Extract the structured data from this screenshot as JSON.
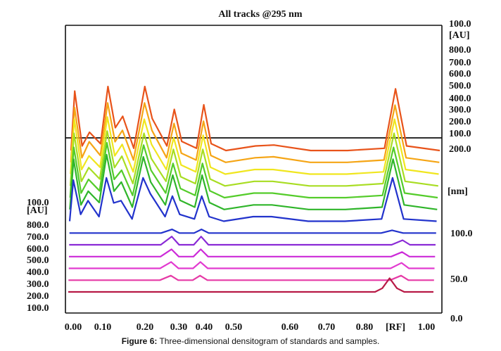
{
  "chart_data": {
    "type": "line",
    "title": "All tracks @295 nm",
    "caption_bold": "Figure 6:",
    "caption_rest": " Three-dimensional densitogram of standards and samples.",
    "xlabel": "[RF]",
    "x_ticks": [
      "0.00",
      "0.10",
      "0.20",
      "0.30",
      "0.40",
      "0.50",
      "0.60",
      "0.70",
      "0.80",
      "1.00"
    ],
    "left_au_ticks": [
      "100.0",
      "800.0",
      "700.0",
      "600.0",
      "500.0",
      "400.0",
      "300.0",
      "200.0",
      "100.0"
    ],
    "left_au_unit": "[AU]",
    "right_au_ticks": [
      "100.0",
      "800.0",
      "700.0",
      "600.0",
      "500.0",
      "400.0",
      "300.0",
      "200.0",
      "100.0"
    ],
    "right_au_unit": "[AU]",
    "right_nm_top": "200.0",
    "right_nm_unit": "[nm]",
    "right_nm_ticks": [
      "100.0",
      "50.0",
      "0.0"
    ],
    "series": [
      {
        "color": "#e8531a",
        "values": [
          [
            0.0,
            0
          ],
          [
            0.01,
            130
          ],
          [
            0.03,
            10
          ],
          [
            0.05,
            40
          ],
          [
            0.08,
            15
          ],
          [
            0.1,
            140
          ],
          [
            0.12,
            50
          ],
          [
            0.14,
            75
          ],
          [
            0.17,
            5
          ],
          [
            0.2,
            140
          ],
          [
            0.22,
            70
          ],
          [
            0.26,
            10
          ],
          [
            0.28,
            90
          ],
          [
            0.3,
            20
          ],
          [
            0.34,
            5
          ],
          [
            0.36,
            100
          ],
          [
            0.38,
            15
          ],
          [
            0.42,
            0
          ],
          [
            0.5,
            10
          ],
          [
            0.55,
            12
          ],
          [
            0.65,
            0
          ],
          [
            0.75,
            0
          ],
          [
            0.85,
            5
          ],
          [
            0.88,
            135
          ],
          [
            0.91,
            10
          ],
          [
            1.0,
            0
          ]
        ]
      },
      {
        "color": "#f5a515",
        "values": [
          [
            0.0,
            0
          ],
          [
            0.01,
            120
          ],
          [
            0.03,
            10
          ],
          [
            0.05,
            45
          ],
          [
            0.08,
            15
          ],
          [
            0.1,
            130
          ],
          [
            0.12,
            45
          ],
          [
            0.14,
            70
          ],
          [
            0.17,
            5
          ],
          [
            0.2,
            130
          ],
          [
            0.22,
            70
          ],
          [
            0.26,
            10
          ],
          [
            0.28,
            85
          ],
          [
            0.3,
            20
          ],
          [
            0.34,
            5
          ],
          [
            0.36,
            90
          ],
          [
            0.38,
            15
          ],
          [
            0.42,
            0
          ],
          [
            0.5,
            10
          ],
          [
            0.55,
            12
          ],
          [
            0.65,
            0
          ],
          [
            0.75,
            0
          ],
          [
            0.85,
            5
          ],
          [
            0.88,
            125
          ],
          [
            0.91,
            10
          ],
          [
            1.0,
            0
          ]
        ]
      },
      {
        "color": "#f0e61e",
        "values": [
          [
            0.0,
            0
          ],
          [
            0.01,
            120
          ],
          [
            0.03,
            10
          ],
          [
            0.05,
            40
          ],
          [
            0.08,
            15
          ],
          [
            0.1,
            125
          ],
          [
            0.12,
            40
          ],
          [
            0.14,
            65
          ],
          [
            0.17,
            5
          ],
          [
            0.2,
            120
          ],
          [
            0.22,
            65
          ],
          [
            0.26,
            10
          ],
          [
            0.28,
            80
          ],
          [
            0.3,
            20
          ],
          [
            0.34,
            5
          ],
          [
            0.36,
            85
          ],
          [
            0.38,
            15
          ],
          [
            0.42,
            0
          ],
          [
            0.5,
            10
          ],
          [
            0.55,
            10
          ],
          [
            0.65,
            0
          ],
          [
            0.75,
            0
          ],
          [
            0.85,
            5
          ],
          [
            0.88,
            120
          ],
          [
            0.91,
            10
          ],
          [
            1.0,
            0
          ]
        ]
      },
      {
        "color": "#a8dd22",
        "values": [
          [
            0.0,
            0
          ],
          [
            0.01,
            115
          ],
          [
            0.03,
            10
          ],
          [
            0.05,
            40
          ],
          [
            0.08,
            15
          ],
          [
            0.1,
            120
          ],
          [
            0.12,
            40
          ],
          [
            0.14,
            65
          ],
          [
            0.17,
            5
          ],
          [
            0.2,
            115
          ],
          [
            0.22,
            60
          ],
          [
            0.26,
            10
          ],
          [
            0.28,
            80
          ],
          [
            0.3,
            20
          ],
          [
            0.34,
            5
          ],
          [
            0.36,
            80
          ],
          [
            0.38,
            15
          ],
          [
            0.42,
            0
          ],
          [
            0.5,
            10
          ],
          [
            0.55,
            10
          ],
          [
            0.65,
            0
          ],
          [
            0.75,
            0
          ],
          [
            0.85,
            5
          ],
          [
            0.88,
            115
          ],
          [
            0.91,
            10
          ],
          [
            1.0,
            0
          ]
        ]
      },
      {
        "color": "#54cc2a",
        "values": [
          [
            0.0,
            0
          ],
          [
            0.01,
            110
          ],
          [
            0.03,
            10
          ],
          [
            0.05,
            40
          ],
          [
            0.08,
            15
          ],
          [
            0.1,
            120
          ],
          [
            0.12,
            40
          ],
          [
            0.14,
            60
          ],
          [
            0.17,
            5
          ],
          [
            0.2,
            115
          ],
          [
            0.22,
            60
          ],
          [
            0.26,
            10
          ],
          [
            0.28,
            75
          ],
          [
            0.3,
            20
          ],
          [
            0.34,
            5
          ],
          [
            0.36,
            75
          ],
          [
            0.38,
            15
          ],
          [
            0.42,
            0
          ],
          [
            0.5,
            10
          ],
          [
            0.55,
            10
          ],
          [
            0.65,
            0
          ],
          [
            0.75,
            0
          ],
          [
            0.85,
            5
          ],
          [
            0.88,
            110
          ],
          [
            0.91,
            10
          ],
          [
            1.0,
            0
          ]
        ]
      },
      {
        "color": "#2fb52a",
        "values": [
          [
            0.0,
            0
          ],
          [
            0.01,
            110
          ],
          [
            0.03,
            10
          ],
          [
            0.05,
            40
          ],
          [
            0.08,
            15
          ],
          [
            0.1,
            120
          ],
          [
            0.12,
            40
          ],
          [
            0.14,
            60
          ],
          [
            0.17,
            5
          ],
          [
            0.2,
            115
          ],
          [
            0.22,
            60
          ],
          [
            0.26,
            10
          ],
          [
            0.28,
            75
          ],
          [
            0.3,
            20
          ],
          [
            0.34,
            5
          ],
          [
            0.36,
            75
          ],
          [
            0.38,
            15
          ],
          [
            0.42,
            0
          ],
          [
            0.5,
            10
          ],
          [
            0.55,
            10
          ],
          [
            0.65,
            0
          ],
          [
            0.75,
            0
          ],
          [
            0.85,
            5
          ],
          [
            0.88,
            110
          ],
          [
            0.91,
            10
          ],
          [
            1.0,
            0
          ]
        ]
      },
      {
        "color": "#2233cc",
        "values": [
          [
            0.0,
            0
          ],
          [
            0.01,
            90
          ],
          [
            0.03,
            15
          ],
          [
            0.05,
            45
          ],
          [
            0.08,
            10
          ],
          [
            0.1,
            95
          ],
          [
            0.12,
            40
          ],
          [
            0.14,
            45
          ],
          [
            0.17,
            5
          ],
          [
            0.2,
            95
          ],
          [
            0.22,
            60
          ],
          [
            0.26,
            10
          ],
          [
            0.28,
            55
          ],
          [
            0.3,
            15
          ],
          [
            0.34,
            5
          ],
          [
            0.36,
            55
          ],
          [
            0.38,
            10
          ],
          [
            0.42,
            0
          ],
          [
            0.5,
            10
          ],
          [
            0.55,
            10
          ],
          [
            0.65,
            0
          ],
          [
            0.75,
            0
          ],
          [
            0.85,
            5
          ],
          [
            0.88,
            95
          ],
          [
            0.91,
            5
          ],
          [
            1.0,
            0
          ]
        ]
      },
      {
        "color": "#2233cc",
        "values": [
          [
            0.0,
            0
          ],
          [
            0.25,
            0
          ],
          [
            0.28,
            8
          ],
          [
            0.3,
            0
          ],
          [
            0.34,
            0
          ],
          [
            0.36,
            8
          ],
          [
            0.38,
            0
          ],
          [
            0.85,
            0
          ],
          [
            0.88,
            6
          ],
          [
            0.91,
            0
          ],
          [
            1.0,
            0
          ]
        ]
      },
      {
        "color": "#8a2ad6",
        "values": [
          [
            0.0,
            0
          ],
          [
            0.25,
            0
          ],
          [
            0.28,
            18
          ],
          [
            0.3,
            0
          ],
          [
            0.34,
            0
          ],
          [
            0.36,
            18
          ],
          [
            0.38,
            0
          ],
          [
            0.88,
            0
          ],
          [
            0.91,
            10
          ],
          [
            0.93,
            0
          ],
          [
            1.0,
            0
          ]
        ]
      },
      {
        "color": "#cc2ad8",
        "values": [
          [
            0.0,
            0
          ],
          [
            0.25,
            0
          ],
          [
            0.28,
            16
          ],
          [
            0.3,
            0
          ],
          [
            0.34,
            0
          ],
          [
            0.36,
            16
          ],
          [
            0.38,
            0
          ],
          [
            0.88,
            0
          ],
          [
            0.91,
            10
          ],
          [
            0.93,
            0
          ],
          [
            1.0,
            0
          ]
        ]
      },
      {
        "color": "#e23ad0",
        "values": [
          [
            0.0,
            0
          ],
          [
            0.25,
            0
          ],
          [
            0.28,
            14
          ],
          [
            0.3,
            0
          ],
          [
            0.34,
            0
          ],
          [
            0.36,
            14
          ],
          [
            0.38,
            0
          ],
          [
            0.88,
            0
          ],
          [
            0.91,
            12
          ],
          [
            0.93,
            0
          ],
          [
            1.0,
            0
          ]
        ]
      },
      {
        "color": "#e63aa6",
        "values": [
          [
            0.0,
            0
          ],
          [
            0.25,
            0
          ],
          [
            0.28,
            10
          ],
          [
            0.3,
            0
          ],
          [
            0.34,
            0
          ],
          [
            0.36,
            10
          ],
          [
            0.38,
            0
          ],
          [
            0.88,
            0
          ],
          [
            0.91,
            10
          ],
          [
            0.93,
            0
          ],
          [
            1.0,
            0
          ]
        ]
      },
      {
        "color": "#b81a46",
        "values": [
          [
            0.0,
            0
          ],
          [
            0.84,
            0
          ],
          [
            0.86,
            8
          ],
          [
            0.88,
            30
          ],
          [
            0.9,
            8
          ],
          [
            0.92,
            0
          ],
          [
            1.0,
            0
          ]
        ]
      }
    ],
    "grid": false,
    "legend": "none"
  }
}
